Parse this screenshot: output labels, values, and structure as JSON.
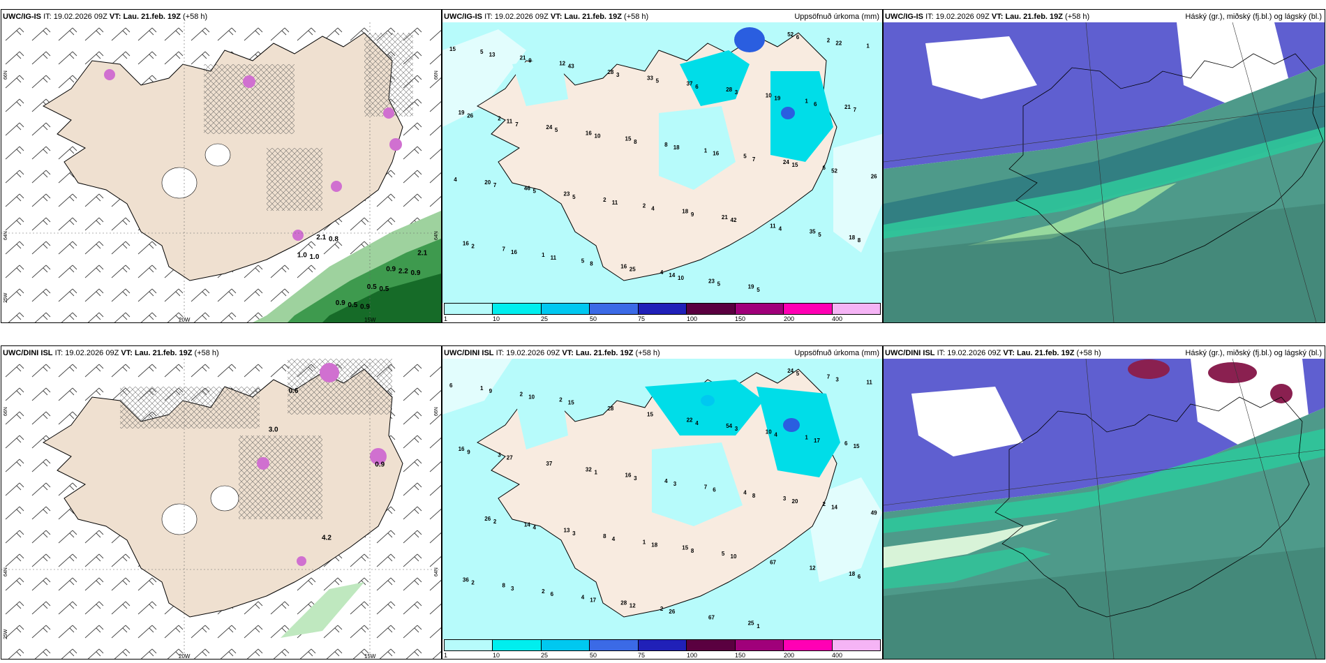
{
  "rows": [
    {
      "model": "UWC/IG-IS",
      "it_label": "IT:",
      "it_value": "19.02.2026 09Z",
      "vt_label": "VT:",
      "vt_value": "Lau. 21.feb. 19Z",
      "lead": "(+58 h)"
    },
    {
      "model": "UWC/DINI ISL",
      "it_label": "IT:",
      "it_value": "19.02.2026 09Z",
      "vt_label": "VT:",
      "vt_value": "Lau. 21.feb. 19Z",
      "lead": "(+58 h)"
    }
  ],
  "precip_title": "Uppsöfnuð úrkoma (mm)",
  "cloud_title": "Háský (gr.), miðský (fj.bl.) og lágský (bl.)",
  "colorbar": {
    "ticks": [
      "1",
      "10",
      "25",
      "50",
      "75",
      "100",
      "150",
      "200",
      "400"
    ],
    "colors": [
      "#b7fbfb",
      "#00eeee",
      "#00c8f0",
      "#3b6ae6",
      "#2020b8",
      "#5a0040",
      "#a0007a",
      "#ff00b4",
      "#f5b4f5"
    ]
  },
  "axis_labels": {
    "lon": [
      "20W",
      "15W"
    ],
    "lat_left": [
      "66N",
      "64N",
      "25W"
    ],
    "lat_right": [
      "66N",
      "64N"
    ]
  },
  "panels": {
    "ig_precip_values": [
      "2",
      "4",
      "6",
      "12",
      "21",
      "19",
      "16",
      "24",
      "21",
      "18",
      "21",
      "5",
      "5",
      "5",
      "2",
      "1",
      "1",
      "1",
      "1",
      "2",
      "10",
      "7",
      "8",
      "2",
      "23",
      "28",
      "16",
      "15",
      "52",
      "46",
      "37",
      "18",
      "16",
      "19",
      "20",
      "33",
      "35",
      "24",
      "23",
      "26",
      "28",
      "11",
      "11",
      "14",
      "52",
      "43",
      "42",
      "26",
      "25",
      "15",
      "9",
      "9",
      "7",
      "8",
      "7",
      "13",
      "4",
      "6",
      "11",
      "16",
      "15",
      "11",
      "19",
      "16",
      "18",
      "22",
      "5",
      "3",
      "2",
      "8",
      "6",
      "5",
      "6",
      "8",
      "10",
      "5",
      "7",
      "5",
      "5",
      "5",
      "5",
      "4",
      "3",
      "4",
      "7",
      "10"
    ],
    "dini_precip_values": [
      "3",
      "2",
      "2",
      "2",
      "5",
      "16",
      "28",
      "3",
      "2",
      "15",
      "6",
      "4",
      "4",
      "1",
      "1",
      "1",
      "2",
      "7",
      "11",
      "8",
      "10",
      "8",
      "4",
      "7",
      "13",
      "54",
      "36",
      "16",
      "24",
      "14",
      "22",
      "18",
      "32",
      "25",
      "26",
      "15",
      "12",
      "37",
      "67",
      "49",
      "28",
      "67",
      "27",
      "26",
      "14",
      "15",
      "10",
      "9",
      "12",
      "20",
      "10",
      "8",
      "15",
      "17",
      "8",
      "9",
      "18",
      "17",
      "6",
      "6",
      "6",
      "4",
      "4",
      "3",
      "3",
      "3",
      "3",
      "3",
      "2",
      "3",
      "5",
      "4",
      "4",
      "6",
      "1",
      "1",
      "2"
    ],
    "ig_wind_values": [
      "1.0",
      "0.9",
      "0.9",
      "0.8",
      "0.5",
      "1.0",
      "0.5",
      "2.2",
      "2.1",
      "0.5",
      "2.1",
      "0.9",
      "0.9"
    ],
    "dini_wind_values": [
      "3.0",
      "4.2",
      "0.9",
      "0.6"
    ]
  }
}
